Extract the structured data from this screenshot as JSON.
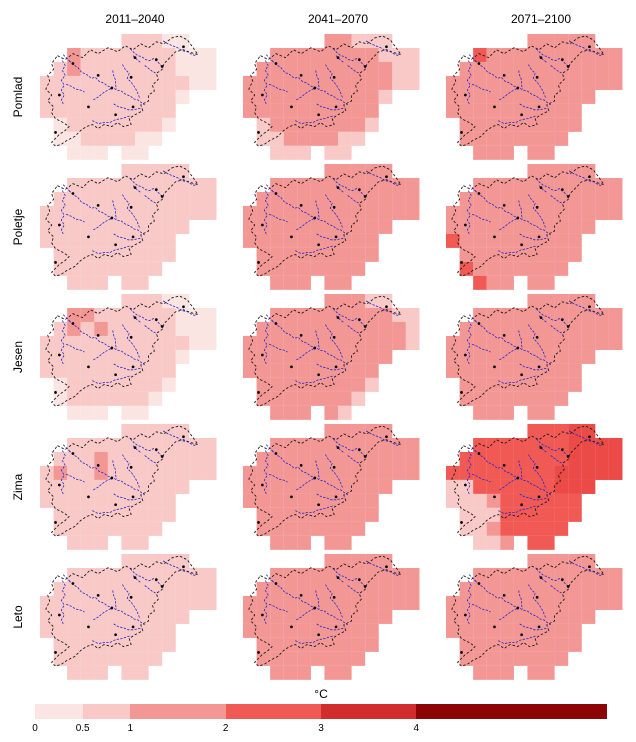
{
  "figure": {
    "col_headers": [
      "2011–2040",
      "2041–2070",
      "2071–2100"
    ],
    "row_labels": [
      "Pomlad",
      "Poletje",
      "Jesen",
      "Zima",
      "Leto"
    ],
    "colorbar": {
      "title": "°C",
      "tick_labels": [
        "0",
        "0.5",
        "1",
        "2",
        "3",
        "4"
      ],
      "tick_values": [
        0,
        0.5,
        1,
        2,
        3,
        4
      ],
      "range": [
        0,
        6
      ],
      "segments": [
        {
          "from": 0,
          "to": 0.5,
          "color": "#fbe5e2"
        },
        {
          "from": 0.5,
          "to": 1,
          "color": "#f8c9c6"
        },
        {
          "from": 1,
          "to": 2,
          "color": "#f39795"
        },
        {
          "from": 2,
          "to": 3,
          "color": "#f15955"
        },
        {
          "from": 3,
          "to": 4,
          "color": "#d02d2c"
        },
        {
          "from": 4,
          "to": 6,
          "color": "#8c0404"
        }
      ]
    },
    "map_colors": {
      "border_outline": "#1a1a1a",
      "rivers": "#2424cf",
      "city_dots": "#000000"
    }
  },
  "chart_data": {
    "type": "heatmap",
    "unit": "°C",
    "title": "",
    "columns": [
      "2011–2040",
      "2041–2070",
      "2071–2100"
    ],
    "rows": [
      "Pomlad",
      "Poletje",
      "Jesen",
      "Zima",
      "Leto"
    ],
    "legend_position": "bottom",
    "value_range": [
      0,
      6
    ],
    "palette": {
      "1": {
        "color": "#fbe5e2",
        "label": "0–0.5 °C"
      },
      "2": {
        "color": "#f8c9c6",
        "label": "0.5–1 °C"
      },
      "3": {
        "color": "#f39795",
        "label": "1–2 °C"
      },
      "4": {
        "color": "#f15955",
        "label": "2–3 °C"
      },
      "d": {
        "color": "#eb4a46",
        "label": "2–3 °C"
      },
      "5": {
        "color": "#d02d2c",
        "label": "3–4 °C"
      },
      "6": {
        "color": "#8c0404",
        "label": ">4 °C"
      }
    },
    "grid_size": {
      "cols": 14,
      "rows": 9
    },
    "panels": [
      {
        "row": "Pomlad",
        "col": "2011–2040",
        "grid": [
          "......22211...",
          "..32222222111.",
          ".232222222111.",
          "2222222222211.",
          "22222222221...",
          "2222222222....",
          ".122222221....",
          ".11222211.....",
          "..111.11......"
        ]
      },
      {
        "row": "Pomlad",
        "col": "2041–2070",
        "grid": [
          "......33222...",
          "..33333333222.",
          ".333333333322.",
          "3333333333322.",
          "33333333332...",
          "3333333333....",
          ".233333332....",
          ".22333322.....",
          "..222.22......"
        ]
      },
      {
        "row": "Pomlad",
        "col": "2071–2100",
        "grid": [
          "......33333...",
          "..43333333333.",
          ".333333333333.",
          "3333333333333.",
          "33333333333...",
          "3333333333....",
          ".333333333....",
          ".33333333.....",
          "..333.33......"
        ]
      },
      {
        "row": "Poletje",
        "col": "2011–2040",
        "grid": [
          "......22222...",
          "..22222222222.",
          ".222222222222.",
          "2222222222222.",
          "22222222222...",
          "2222222222....",
          ".222222222....",
          ".22222222.....",
          "..222.22......"
        ]
      },
      {
        "row": "Poletje",
        "col": "2041–2070",
        "grid": [
          "......33333...",
          "..33333333333.",
          ".333333333333.",
          "3333333333333.",
          "33333333333...",
          "3333333333....",
          ".333333333....",
          ".33333333.....",
          "..333.33......"
        ]
      },
      {
        "row": "Poletje",
        "col": "2071–2100",
        "grid": [
          "......33333...",
          "..33333333333.",
          ".333333333333.",
          "3333333333333.",
          "33333333333...",
          "4333333333....",
          ".333333333....",
          ".43333333.....",
          "..433.33......"
        ]
      },
      {
        "row": "Jesen",
        "col": "2011–2040",
        "grid": [
          "......22211...",
          "..33222222111.",
          ".232322222111.",
          "2222222222211.",
          "22222222221...",
          "2222222222....",
          ".122222221....",
          ".12222221.....",
          "..111.11......"
        ]
      },
      {
        "row": "Jesen",
        "col": "2041–2070",
        "grid": [
          "......33322...",
          "..33333333322.",
          ".333333333332.",
          "3333333333332.",
          "33333333333...",
          "3333333333....",
          ".333333332....",
          ".33333332.....",
          "..333.32......"
        ]
      },
      {
        "row": "Jesen",
        "col": "2071–2100",
        "grid": [
          "......33333...",
          "..33333333333.",
          ".333333333333.",
          "3333333333333.",
          "33333333333...",
          "3333333333....",
          ".333333333....",
          ".33333333.....",
          "..333.33......"
        ]
      },
      {
        "row": "Zima",
        "col": "2011–2040",
        "grid": [
          "......22222...",
          "..22222222222.",
          ".222322222222.",
          "2322322222222.",
          "22222222222...",
          "2222222222....",
          ".222222222....",
          ".22222222.....",
          "..222.22......"
        ]
      },
      {
        "row": "Zima",
        "col": "2041–2070",
        "grid": [
          "......33333...",
          "..33333333333.",
          ".333333333333.",
          "3333333333333.",
          "33333333333...",
          "3333333333....",
          ".333333333....",
          ".33333333.....",
          "..333.33......"
        ]
      },
      {
        "row": "Zima",
        "col": "2071–2100",
        "grid": [
          "......444dd...",
          "..4444444dddd.",
          ".44444444dddd.",
          "44444444ddddd.",
          "22444444ddd...",
          "2223444444....",
          ".222444444....",
          ".22344444.....",
          "..223.44......"
        ]
      },
      {
        "row": "Leto",
        "col": "2011–2040",
        "grid": [
          "......22222...",
          "..22222222222.",
          ".222222222222.",
          "2222222222222.",
          "22222222222...",
          "2222222222....",
          ".222222222....",
          ".22222222.....",
          "..222.22......"
        ]
      },
      {
        "row": "Leto",
        "col": "2041–2070",
        "grid": [
          "......33333...",
          "..33333333333.",
          ".333333333333.",
          "3333333333333.",
          "33333333333...",
          "3333333333....",
          ".333333333....",
          ".33333333.....",
          "..333.33......"
        ]
      },
      {
        "row": "Leto",
        "col": "2071–2100",
        "grid": [
          "......33333...",
          "..33333333333.",
          ".333333333333.",
          "3333333333333.",
          "33333333333...",
          "3333333333....",
          ".333333333....",
          ".33333333.....",
          "..333.33......"
        ]
      }
    ]
  }
}
